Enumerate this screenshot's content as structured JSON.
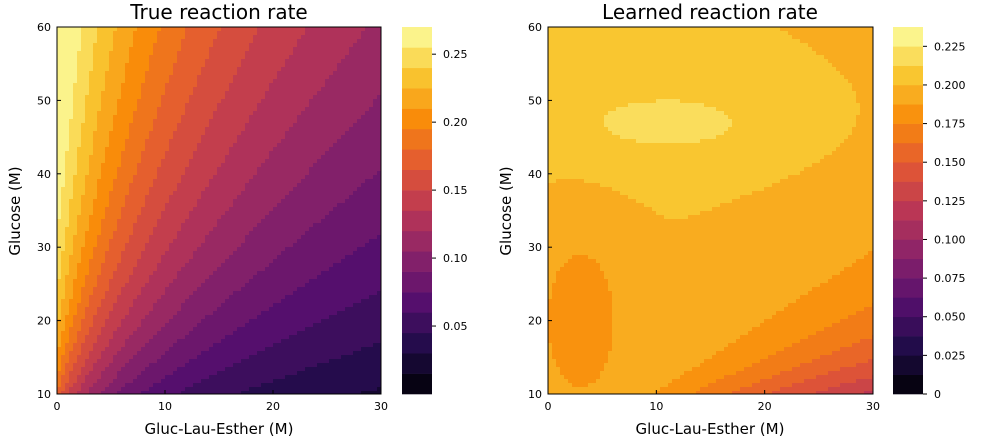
{
  "chart_data": [
    {
      "type": "heatmap",
      "subtype": "filled-contour",
      "colormap": "inferno",
      "title": "True reaction rate",
      "xlabel": "Gluc-Lau-Esther (M)",
      "ylabel": "Glucose (M)",
      "xlim": [
        0,
        30
      ],
      "ylim": [
        10,
        60
      ],
      "xticks": [
        "0",
        "10",
        "20",
        "30"
      ],
      "yticks": [
        "10",
        "20",
        "30",
        "40",
        "50",
        "60"
      ],
      "colorbar": {
        "range": [
          0,
          0.27
        ],
        "levels": [
          0,
          0.015,
          0.03,
          0.045,
          0.06,
          0.075,
          0.09,
          0.105,
          0.12,
          0.135,
          0.15,
          0.165,
          0.18,
          0.195,
          0.21,
          0.225,
          0.24,
          0.255,
          0.27
        ],
        "ticks": [
          0.05,
          0.1,
          0.15,
          0.2,
          0.25
        ],
        "tick_labels": [
          "0.05",
          "0.10",
          "0.15",
          "0.20",
          "0.25"
        ]
      },
      "grid": false
    },
    {
      "type": "heatmap",
      "subtype": "filled-contour",
      "colormap": "inferno",
      "title": "Learned reaction rate",
      "xlabel": "Gluc-Lau-Esther (M)",
      "ylabel": "Glucose (M)",
      "xlim": [
        0,
        30
      ],
      "ylim": [
        10,
        60
      ],
      "xticks": [
        "0",
        "10",
        "20",
        "30"
      ],
      "yticks": [
        "10",
        "20",
        "30",
        "40",
        "50",
        "60"
      ],
      "colorbar": {
        "range": [
          0,
          0.2375
        ],
        "levels": [
          0,
          0.0125,
          0.025,
          0.0375,
          0.05,
          0.0625,
          0.075,
          0.0875,
          0.1,
          0.1125,
          0.125,
          0.1375,
          0.15,
          0.1625,
          0.175,
          0.1875,
          0.2,
          0.2125,
          0.225,
          0.2375
        ],
        "ticks": [
          0,
          0.025,
          0.05,
          0.075,
          0.1,
          0.125,
          0.15,
          0.175,
          0.2,
          0.225
        ],
        "tick_labels": [
          "0",
          "0.025",
          "0.050",
          "0.075",
          "0.100",
          "0.125",
          "0.150",
          "0.175",
          "0.200",
          "0.225"
        ]
      },
      "grid": false
    }
  ]
}
